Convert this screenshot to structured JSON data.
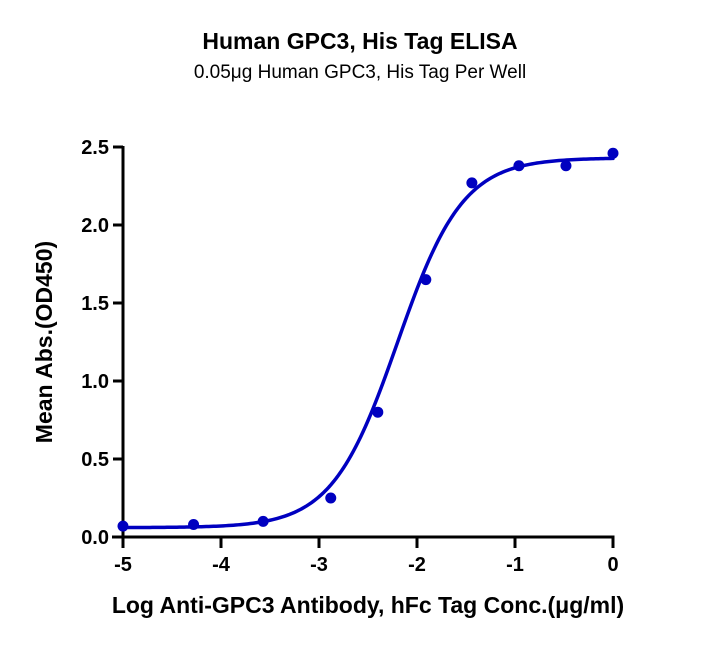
{
  "chart_data": {
    "type": "scatter",
    "title": "Human GPC3, His Tag ELISA",
    "subtitle": "0.05μg Human GPC3, His Tag Per Well",
    "xlabel": "Log Anti-GPC3 Antibody, hFc Tag Conc.(μg/ml)",
    "ylabel": "Mean Abs.(OD450)",
    "xlim": [
      -5,
      0
    ],
    "ylim": [
      0,
      2.5
    ],
    "x_ticks": [
      -5,
      -4,
      -3,
      -2,
      -1,
      0
    ],
    "x_tick_labels": [
      "-5",
      "-4",
      "-3",
      "-2",
      "-1",
      "0"
    ],
    "y_ticks": [
      0,
      0.5,
      1.0,
      1.5,
      2.0,
      2.5
    ],
    "y_tick_labels": [
      "0.0",
      "0.5",
      "1.0",
      "1.5",
      "2.0",
      "2.5"
    ],
    "grid": false,
    "legend": null,
    "color": "#0000c0",
    "series": [
      {
        "name": "Human GPC3, His Tag",
        "x": [
          -5.0,
          -4.28,
          -3.57,
          -2.88,
          -2.4,
          -1.91,
          -1.44,
          -0.96,
          -0.48,
          0.0
        ],
        "y": [
          0.07,
          0.08,
          0.1,
          0.25,
          0.8,
          1.65,
          2.27,
          2.38,
          2.38,
          2.46
        ]
      }
    ],
    "fit": {
      "model": "4PL sigmoidal",
      "bottom": 0.06,
      "top": 2.43,
      "log_ec50": -2.2,
      "hill_slope": 1.3
    }
  }
}
